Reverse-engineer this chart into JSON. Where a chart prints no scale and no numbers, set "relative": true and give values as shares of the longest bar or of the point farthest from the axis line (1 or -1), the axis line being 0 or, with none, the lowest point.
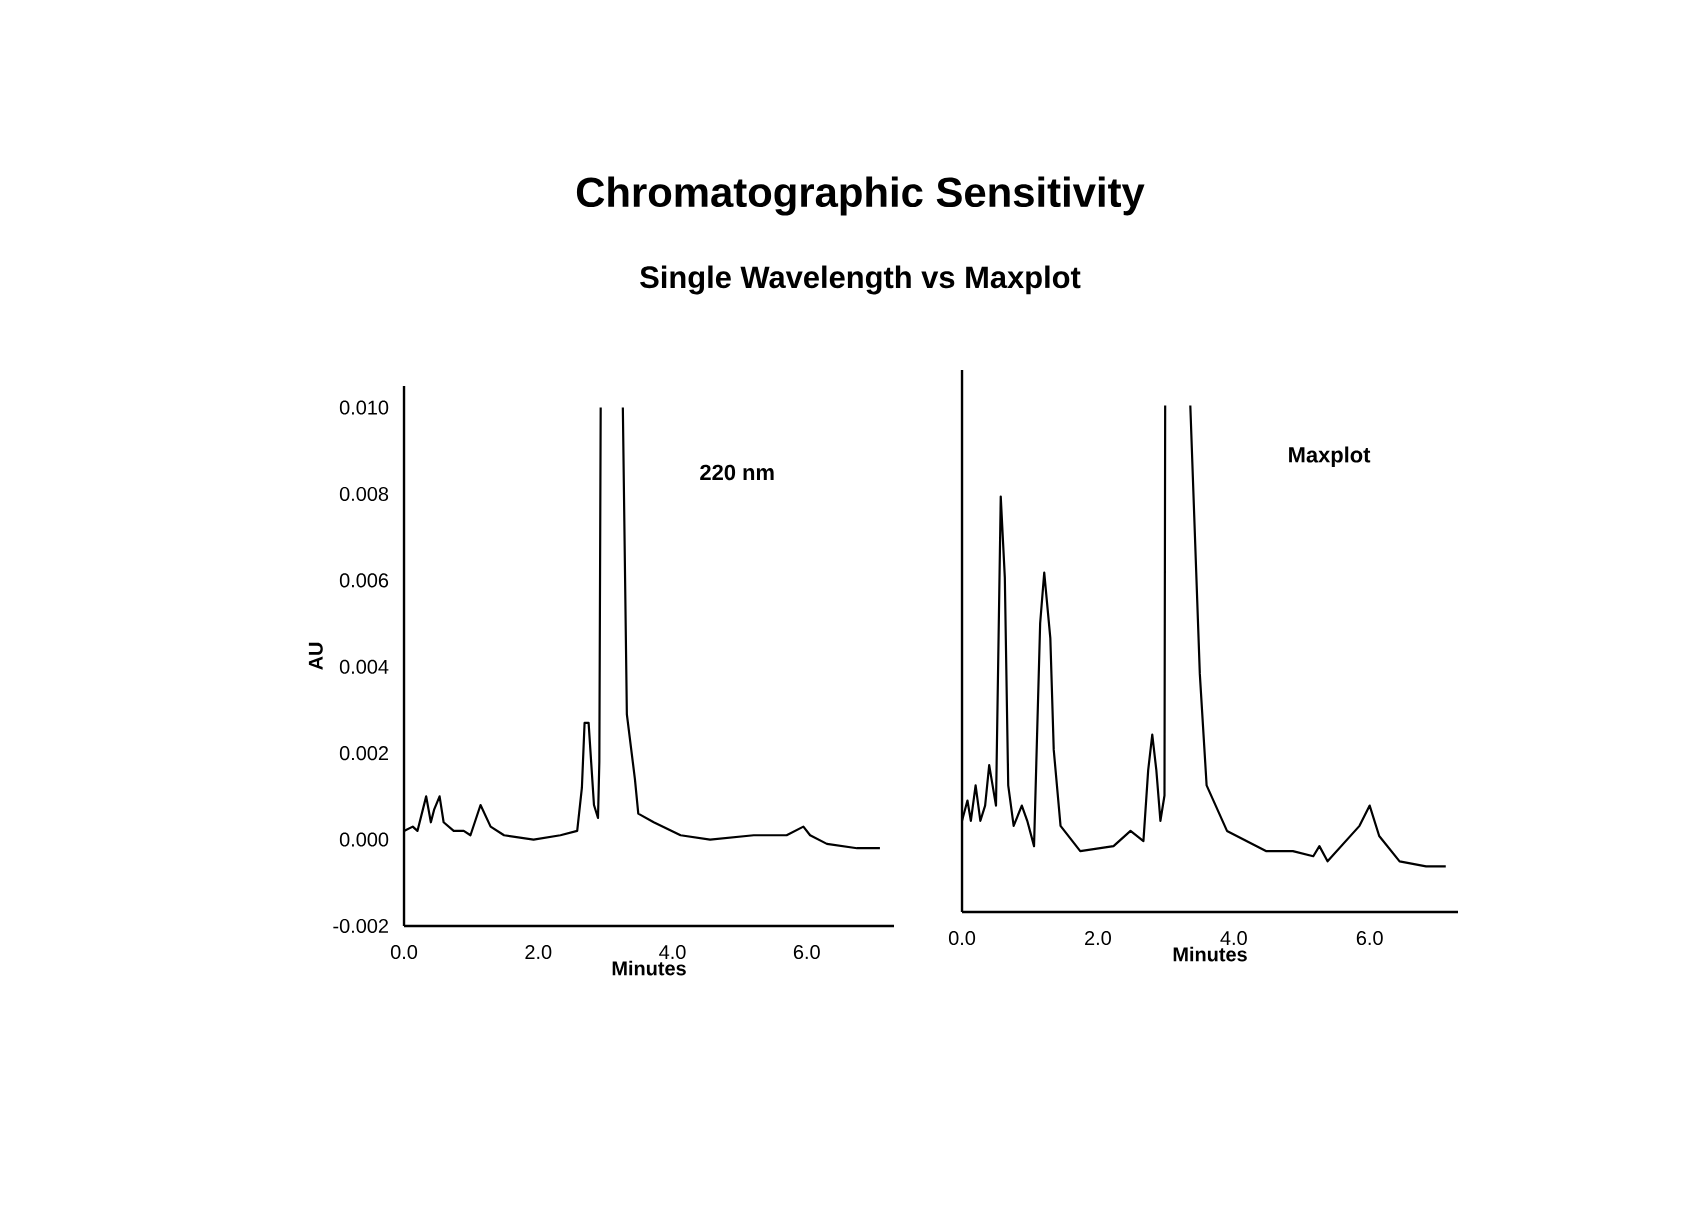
{
  "chart_data": [
    {
      "type": "line",
      "title": "Chromatographic Sensitivity",
      "subtitle": "Single Wavelength vs Maxplot",
      "xlabel": "Minutes",
      "ylabel": "AU",
      "color": "#000000",
      "marker": "none",
      "line_style": "solid",
      "annotations": [
        "220 nm"
      ],
      "xlim": [
        0,
        7.3
      ],
      "ylim": [
        -0.002,
        0.0105
      ],
      "xticks": [
        {
          "value": 0,
          "label": "0.0"
        },
        {
          "value": 2,
          "label": "2.0"
        },
        {
          "value": 4,
          "label": "4.0"
        },
        {
          "value": 6,
          "label": "6.0"
        }
      ],
      "yticks": [
        {
          "value": -0.002,
          "label": "-0.002"
        },
        {
          "value": 0,
          "label": "0.000"
        },
        {
          "value": 0.002,
          "label": "0.002"
        },
        {
          "value": 0.004,
          "label": "0.004"
        },
        {
          "value": 0.006,
          "label": "0.006"
        },
        {
          "value": 0.008,
          "label": "0.008"
        },
        {
          "value": 0.01,
          "label": "0.010"
        }
      ],
      "x": [
        0,
        0.13,
        0.2,
        0.33,
        0.4,
        0.45,
        0.53,
        0.59,
        0.74,
        0.89,
        0.99,
        1.14,
        1.29,
        1.49,
        1.93,
        2.33,
        2.58,
        2.65,
        2.69,
        2.75,
        2.83,
        2.89,
        2.91,
        2.93,
        3.1,
        3.26,
        3.32,
        3.44,
        3.49,
        3.72,
        4.12,
        4.56,
        5.21,
        5.7,
        5.95,
        6.05,
        6.3,
        6.75,
        7.09
      ],
      "values": [
        0.0002,
        0.0003,
        0.0002,
        0.001,
        0.0004,
        0.0007,
        0.001,
        0.0004,
        0.0002,
        0.0002,
        0.0001,
        0.0008,
        0.0003,
        0.0001,
        0.0,
        0.0001,
        0.0002,
        0.0012,
        0.0027,
        0.0027,
        0.0008,
        0.0005,
        0.0018,
        0.01,
        null,
        0.01,
        0.0029,
        0.0014,
        0.0006,
        0.0004,
        0.0001,
        0.0,
        0.0001,
        0.0001,
        0.0003,
        0.0001,
        -0.0001,
        -0.0002,
        -0.0002
      ]
    },
    {
      "type": "line",
      "xlabel": "Minutes",
      "color": "#000000",
      "marker": "none",
      "line_style": "solid",
      "tick_labels": "x",
      "annotations": [
        "Maxplot"
      ],
      "xlim": [
        0,
        7.3
      ],
      "relative": true,
      "xticks": [
        {
          "value": 0,
          "label": "0.0"
        },
        {
          "value": 2,
          "label": "2.0"
        },
        {
          "value": 4,
          "label": "4.0"
        },
        {
          "value": 6,
          "label": "6.0"
        }
      ],
      "x": [
        0,
        0.08,
        0.13,
        0.2,
        0.27,
        0.34,
        0.4,
        0.45,
        0.5,
        0.57,
        0.63,
        0.68,
        0.76,
        0.88,
        0.96,
        1.06,
        1.15,
        1.21,
        1.3,
        1.35,
        1.45,
        1.74,
        2.23,
        2.48,
        2.67,
        2.74,
        2.8,
        2.86,
        2.92,
        2.98,
        2.99,
        3.2,
        3.36,
        3.5,
        3.6,
        3.9,
        4.48,
        4.87,
        5.17,
        5.26,
        5.38,
        5.85,
        6.0,
        6.14,
        6.44,
        6.83,
        7.12
      ],
      "values": [
        0.18,
        0.22,
        0.18,
        0.25,
        0.18,
        0.21,
        0.29,
        0.25,
        0.21,
        0.82,
        0.66,
        0.25,
        0.17,
        0.21,
        0.18,
        0.13,
        0.57,
        0.67,
        0.54,
        0.32,
        0.17,
        0.12,
        0.13,
        0.16,
        0.14,
        0.28,
        0.35,
        0.28,
        0.18,
        0.23,
        1.0,
        null,
        1.0,
        0.47,
        0.25,
        0.16,
        0.12,
        0.12,
        0.11,
        0.13,
        0.1,
        0.17,
        0.21,
        0.15,
        0.1,
        0.09,
        0.09
      ]
    }
  ]
}
